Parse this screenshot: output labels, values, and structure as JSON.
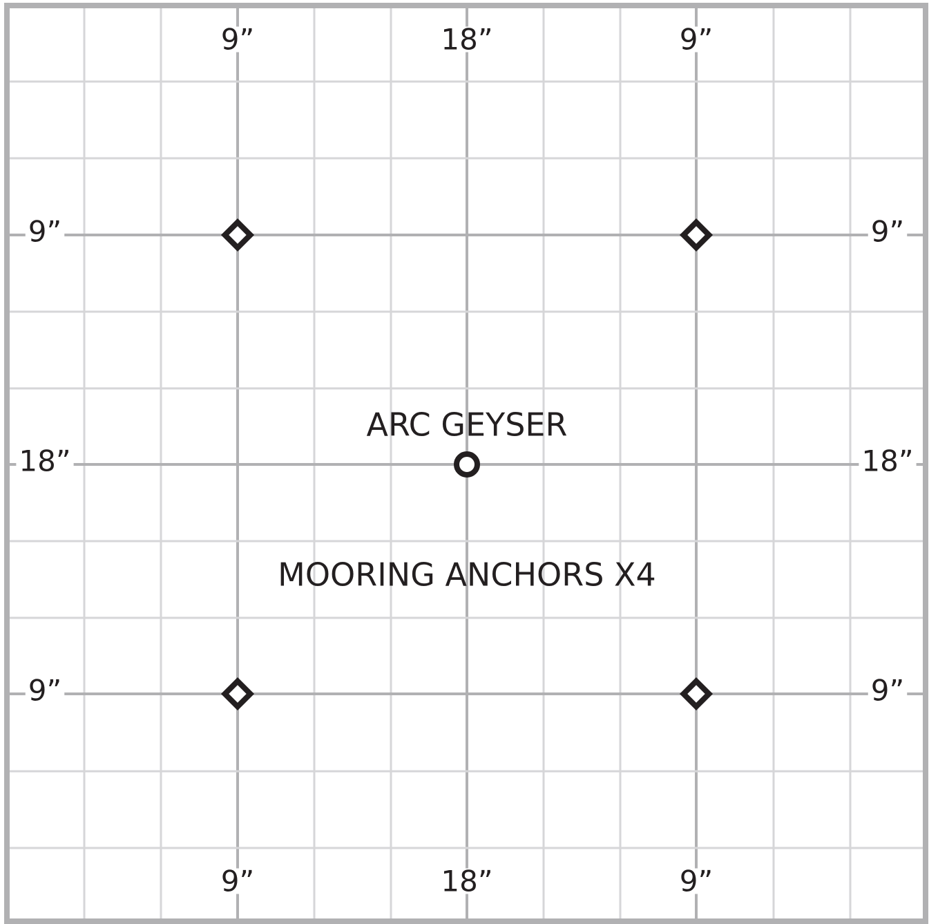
{
  "labels": {
    "top": [
      "9”",
      "18”",
      "9”"
    ],
    "bottom": [
      "9”",
      "18”",
      "9”"
    ],
    "left": [
      "9”",
      "18”",
      "9”"
    ],
    "right": [
      "9”",
      "18”",
      "9”"
    ]
  },
  "center_label": "ARC GEYSER",
  "anchors_label": "MOORING ANCHORS X4"
}
